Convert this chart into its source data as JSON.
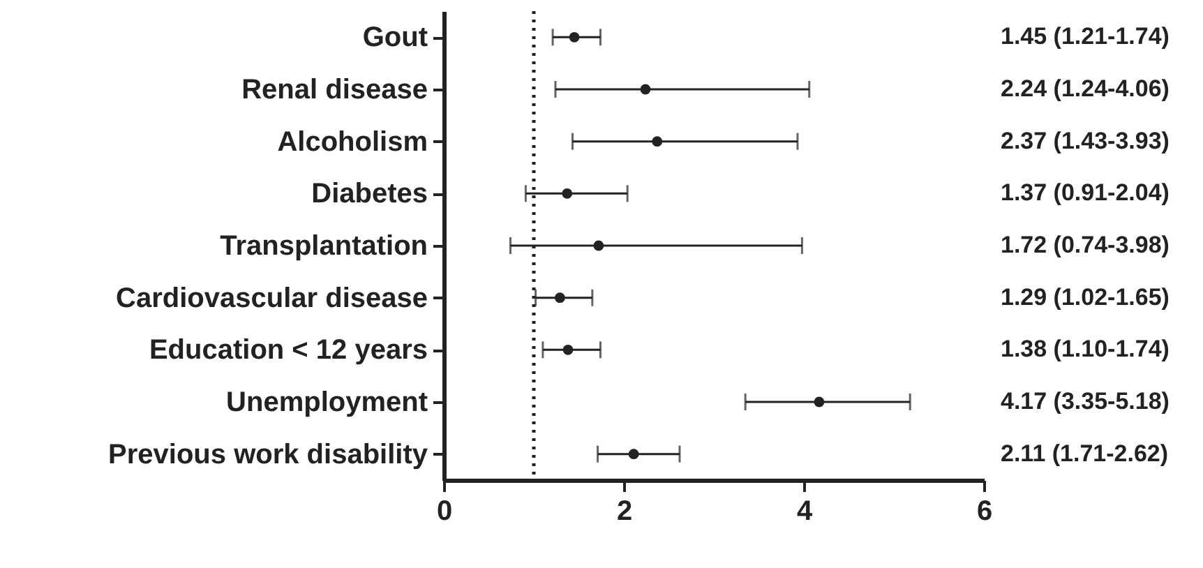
{
  "chart_data": {
    "type": "scatter",
    "orientation": "horizontal",
    "categories": [
      "Gout",
      "Renal disease",
      "Alcoholism",
      "Diabetes",
      "Transplantation",
      "Cardiovascular disease",
      "Education < 12 years",
      "Unemployment",
      "Previous work disability"
    ],
    "values": [
      1.45,
      2.24,
      2.37,
      1.37,
      1.72,
      1.29,
      1.38,
      4.17,
      2.11
    ],
    "errors": [
      [
        1.21,
        1.74
      ],
      [
        1.24,
        4.06
      ],
      [
        1.43,
        3.93
      ],
      [
        0.91,
        2.04
      ],
      [
        0.74,
        3.98
      ],
      [
        1.02,
        1.65
      ],
      [
        1.1,
        1.74
      ],
      [
        3.35,
        5.18
      ],
      [
        1.71,
        2.62
      ]
    ],
    "value_labels": [
      "1.45 (1.21-1.74)",
      "2.24 (1.24-4.06)",
      "2.37 (1.43-3.93)",
      "1.37 (0.91-2.04)",
      "1.72 (0.74-3.98)",
      "1.29 (1.02-1.65)",
      "1.38 (1.10-1.74)",
      "4.17 (3.35-5.18)",
      "2.11 (1.71-2.62)"
    ],
    "color": "#222222",
    "marker": "circle",
    "xlim": [
      0,
      6
    ],
    "xticks": [
      0,
      2,
      4,
      6
    ],
    "ref_lines": [
      {
        "axis": "x",
        "value": 1,
        "line_style": "dotted",
        "color": "#222222"
      }
    ],
    "grid": false
  }
}
